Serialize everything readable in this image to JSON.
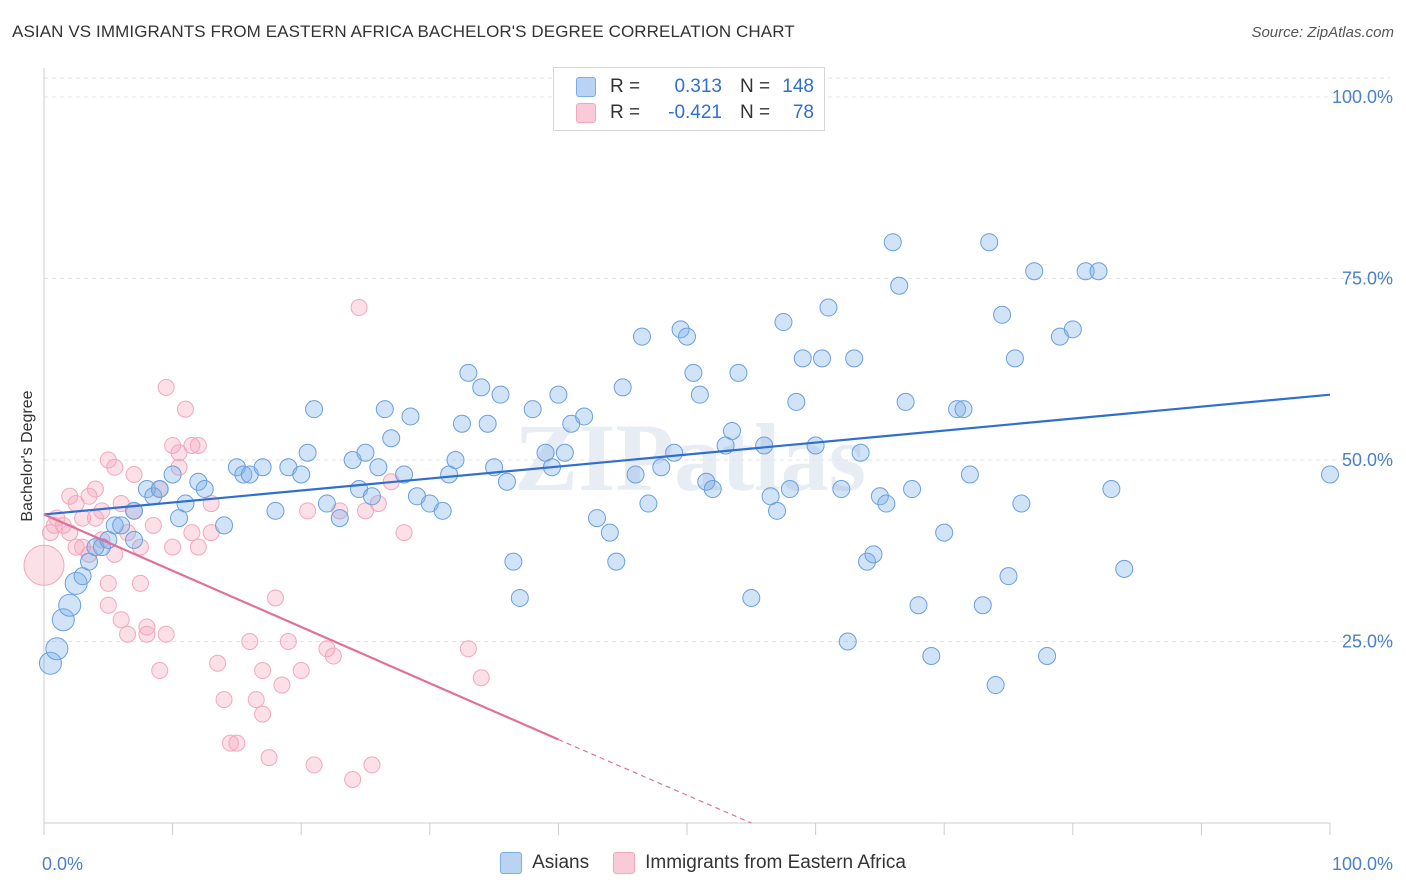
{
  "title": "ASIAN VS IMMIGRANTS FROM EASTERN AFRICA BACHELOR'S DEGREE CORRELATION CHART",
  "source": "Source: ZipAtlas.com",
  "watermark": "ZIPatlas",
  "legend": {
    "rows": [
      {
        "r_label": "R =",
        "r_value": "0.313",
        "n_label": "N =",
        "n_value": "148"
      },
      {
        "r_label": "R =",
        "r_value": "-0.421",
        "n_label": "N =",
        "n_value": "78"
      }
    ]
  },
  "bottom_legend": {
    "series1": "Asians",
    "series2": "Immigrants from Eastern Africa"
  },
  "chart_data": {
    "type": "scatter",
    "title": "ASIAN VS IMMIGRANTS FROM EASTERN AFRICA BACHELOR'S DEGREE CORRELATION CHART",
    "xlabel": "",
    "ylabel": "Bachelor's Degree",
    "xlim": [
      0,
      100
    ],
    "ylim": [
      0,
      100
    ],
    "x_tick_labels": [
      "0.0%",
      "100.0%"
    ],
    "y_tick_labels": [
      "100.0%",
      "75.0%",
      "50.0%",
      "25.0%"
    ],
    "y_tick_values": [
      100,
      75,
      50,
      25
    ],
    "grid": true,
    "colors": {
      "asians": "#7aaee8",
      "eastern_africa": "#f4a6be",
      "asians_line": "#2f6fd0",
      "eastern_africa_line": "#e0709a"
    },
    "series": [
      {
        "name": "Asians",
        "R": 0.313,
        "N": 148,
        "trend": {
          "x": [
            0,
            100
          ],
          "y": [
            42.5,
            59
          ]
        },
        "points": [
          [
            0.5,
            22
          ],
          [
            1,
            24
          ],
          [
            1.5,
            28
          ],
          [
            2,
            30
          ],
          [
            2.5,
            33
          ],
          [
            3,
            34
          ],
          [
            3.5,
            36
          ],
          [
            4,
            38
          ],
          [
            4.5,
            38
          ],
          [
            5,
            39
          ],
          [
            5.5,
            41
          ],
          [
            6,
            41
          ],
          [
            7,
            43
          ],
          [
            7,
            39
          ],
          [
            8,
            46
          ],
          [
            8.5,
            45
          ],
          [
            9,
            46
          ],
          [
            10,
            48
          ],
          [
            10.5,
            42
          ],
          [
            11,
            44
          ],
          [
            12,
            47
          ],
          [
            12.5,
            46
          ],
          [
            14,
            41
          ],
          [
            15,
            49
          ],
          [
            15.5,
            48
          ],
          [
            16,
            48
          ],
          [
            17,
            49
          ],
          [
            18,
            43
          ],
          [
            19,
            49
          ],
          [
            20,
            48
          ],
          [
            20.5,
            51
          ],
          [
            21,
            57
          ],
          [
            22,
            44
          ],
          [
            23,
            42
          ],
          [
            24,
            50
          ],
          [
            24.5,
            46
          ],
          [
            25,
            51
          ],
          [
            25.5,
            45
          ],
          [
            26,
            49
          ],
          [
            26.5,
            57
          ],
          [
            27,
            53
          ],
          [
            28,
            48
          ],
          [
            28.5,
            56
          ],
          [
            29,
            45
          ],
          [
            30,
            44
          ],
          [
            31,
            43
          ],
          [
            31.5,
            48
          ],
          [
            32,
            50
          ],
          [
            32.5,
            55
          ],
          [
            33,
            62
          ],
          [
            34,
            60
          ],
          [
            34.5,
            55
          ],
          [
            35,
            49
          ],
          [
            35.5,
            59
          ],
          [
            36,
            47
          ],
          [
            36.5,
            36
          ],
          [
            37,
            31
          ],
          [
            38,
            57
          ],
          [
            39,
            51
          ],
          [
            39.5,
            49
          ],
          [
            40,
            59
          ],
          [
            40.5,
            51
          ],
          [
            41,
            55
          ],
          [
            42,
            56
          ],
          [
            43,
            42
          ],
          [
            44,
            40
          ],
          [
            44.5,
            36
          ],
          [
            45,
            60
          ],
          [
            46,
            48
          ],
          [
            46.5,
            67
          ],
          [
            47,
            44
          ],
          [
            48,
            49
          ],
          [
            49,
            51
          ],
          [
            49.5,
            68
          ],
          [
            50,
            67
          ],
          [
            50.5,
            62
          ],
          [
            51,
            59
          ],
          [
            51.5,
            47
          ],
          [
            52,
            46
          ],
          [
            53,
            52
          ],
          [
            53.5,
            54
          ],
          [
            54,
            62
          ],
          [
            55,
            31
          ],
          [
            56,
            52
          ],
          [
            56.5,
            45
          ],
          [
            57,
            43
          ],
          [
            57.5,
            69
          ],
          [
            58,
            46
          ],
          [
            58.5,
            58
          ],
          [
            59,
            64
          ],
          [
            60,
            52
          ],
          [
            60.5,
            64
          ],
          [
            61,
            71
          ],
          [
            62,
            46
          ],
          [
            62.5,
            25
          ],
          [
            63,
            64
          ],
          [
            63.5,
            51
          ],
          [
            64,
            36
          ],
          [
            64.5,
            37
          ],
          [
            65,
            45
          ],
          [
            65.5,
            44
          ],
          [
            66,
            80
          ],
          [
            66.5,
            74
          ],
          [
            67,
            58
          ],
          [
            67.5,
            46
          ],
          [
            68,
            30
          ],
          [
            69,
            23
          ],
          [
            70,
            40
          ],
          [
            71,
            57
          ],
          [
            71.5,
            57
          ],
          [
            72,
            48
          ],
          [
            73,
            30
          ],
          [
            73.5,
            80
          ],
          [
            74,
            19
          ],
          [
            74.5,
            70
          ],
          [
            75,
            34
          ],
          [
            75.5,
            64
          ],
          [
            76,
            44
          ],
          [
            77,
            76
          ],
          [
            78,
            23
          ],
          [
            79,
            67
          ],
          [
            80,
            68
          ],
          [
            81,
            76
          ],
          [
            82,
            76
          ],
          [
            83,
            46
          ],
          [
            84,
            35
          ],
          [
            100,
            48
          ]
        ]
      },
      {
        "name": "Immigrants from Eastern Africa",
        "R": -0.421,
        "N": 78,
        "trend": {
          "x": [
            0,
            40
          ],
          "y": [
            42.5,
            11.5
          ]
        },
        "trend_dashed": {
          "x": [
            40,
            55
          ],
          "y": [
            11.5,
            0
          ]
        },
        "points": [
          [
            0,
            35.5
          ],
          [
            0.5,
            40
          ],
          [
            0.8,
            41
          ],
          [
            1,
            42
          ],
          [
            1.5,
            41
          ],
          [
            2,
            40
          ],
          [
            2,
            45
          ],
          [
            2.5,
            44
          ],
          [
            2.5,
            38
          ],
          [
            3,
            42
          ],
          [
            3,
            38
          ],
          [
            3.5,
            37
          ],
          [
            3.5,
            45
          ],
          [
            4,
            46
          ],
          [
            4,
            42
          ],
          [
            4.5,
            39
          ],
          [
            4.5,
            43
          ],
          [
            5,
            50
          ],
          [
            5,
            33
          ],
          [
            5,
            30
          ],
          [
            5.5,
            49
          ],
          [
            5.5,
            37
          ],
          [
            6,
            44
          ],
          [
            6,
            28
          ],
          [
            6.5,
            40
          ],
          [
            6.5,
            26
          ],
          [
            7,
            43
          ],
          [
            7,
            48
          ],
          [
            7.5,
            33
          ],
          [
            7.5,
            38
          ],
          [
            8,
            26
          ],
          [
            8,
            27
          ],
          [
            8.5,
            41
          ],
          [
            9,
            46
          ],
          [
            9,
            21
          ],
          [
            9.5,
            26
          ],
          [
            9.5,
            60
          ],
          [
            10,
            52
          ],
          [
            10,
            38
          ],
          [
            10.5,
            51
          ],
          [
            10.5,
            49
          ],
          [
            11,
            57
          ],
          [
            11.5,
            40
          ],
          [
            11.5,
            52
          ],
          [
            12,
            38
          ],
          [
            12,
            52
          ],
          [
            13,
            40
          ],
          [
            13,
            44
          ],
          [
            13.5,
            22
          ],
          [
            14,
            17
          ],
          [
            14.5,
            11
          ],
          [
            15,
            11
          ],
          [
            16,
            25
          ],
          [
            16.5,
            17
          ],
          [
            17,
            21
          ],
          [
            17,
            15
          ],
          [
            17.5,
            9
          ],
          [
            18,
            31
          ],
          [
            18.5,
            19
          ],
          [
            19,
            25
          ],
          [
            20,
            21
          ],
          [
            20.5,
            43
          ],
          [
            21,
            8
          ],
          [
            22,
            24
          ],
          [
            22.5,
            23
          ],
          [
            23,
            43
          ],
          [
            24,
            6
          ],
          [
            24.5,
            71
          ],
          [
            25,
            43
          ],
          [
            25.5,
            8
          ],
          [
            26,
            44
          ],
          [
            27,
            47
          ],
          [
            28,
            40
          ],
          [
            33,
            24
          ],
          [
            34,
            20
          ]
        ]
      }
    ]
  }
}
